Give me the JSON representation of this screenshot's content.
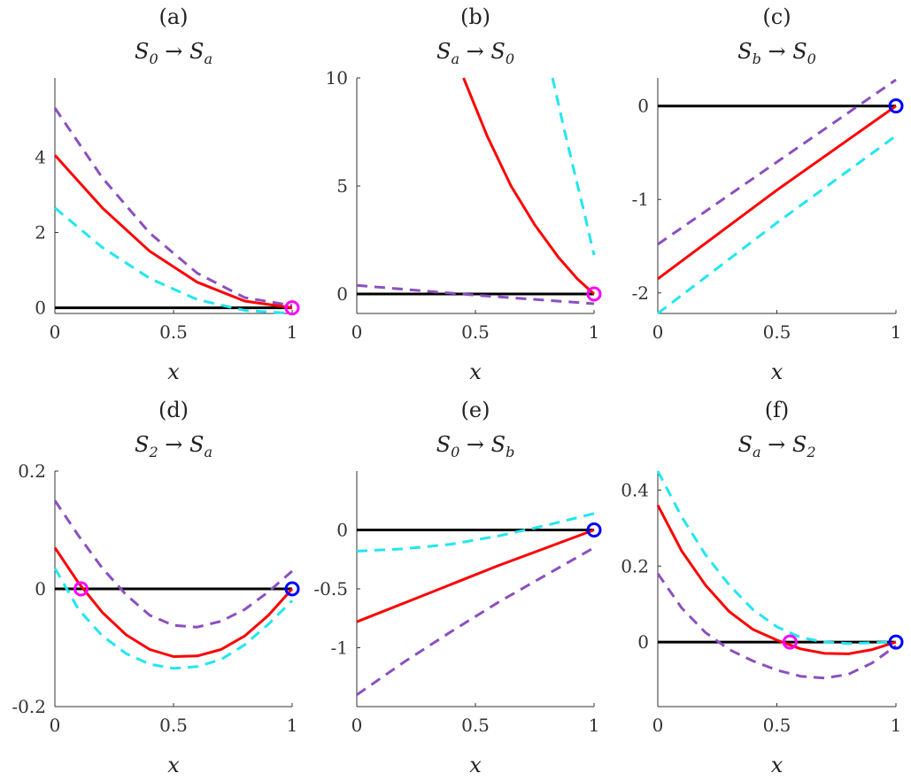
{
  "figure": {
    "x_label": "x",
    "colors": {
      "zero_line": "#000000",
      "solution": "#ff0000",
      "upper_dashed": "#8c4fc0",
      "lower_dashed": "#21e6f0",
      "marker_magenta": "#ff00ff",
      "marker_blue": "#0000ff"
    }
  },
  "chart_data": [
    {
      "id": "a",
      "type": "line",
      "panel_label": "(a)",
      "title": {
        "from": "S",
        "from_sub": "0",
        "to": "S",
        "to_sub": "a"
      },
      "xlabel": "x",
      "xlim": [
        0,
        1
      ],
      "ylim": [
        -0.15,
        6.1
      ],
      "xticks": [
        0,
        0.5,
        1
      ],
      "xtick_labels": [
        "0",
        "0.5",
        "1"
      ],
      "yticks": [
        0,
        2,
        4
      ],
      "ytick_labels": [
        "0",
        "2",
        "4"
      ],
      "series": [
        {
          "style": "zero",
          "x": [
            0,
            1
          ],
          "y": [
            0,
            0
          ]
        },
        {
          "style": "upper-dashed",
          "x": [
            0,
            0.2,
            0.4,
            0.6,
            0.8,
            1
          ],
          "y": [
            5.3,
            3.45,
            1.98,
            0.92,
            0.27,
            0.06
          ]
        },
        {
          "style": "solution",
          "x": [
            0,
            0.2,
            0.4,
            0.6,
            0.8,
            1
          ],
          "y": [
            4.05,
            2.65,
            1.5,
            0.68,
            0.18,
            0
          ]
        },
        {
          "style": "lower-dashed",
          "x": [
            0,
            0.2,
            0.4,
            0.6,
            0.8,
            1
          ],
          "y": [
            2.65,
            1.6,
            0.78,
            0.22,
            -0.07,
            -0.15
          ]
        }
      ],
      "markers": [
        {
          "x": 1,
          "y": 0,
          "color": "magenta"
        }
      ]
    },
    {
      "id": "b",
      "type": "line",
      "panel_label": "(b)",
      "title": {
        "from": "S",
        "from_sub": "a",
        "to": "S",
        "to_sub": "0"
      },
      "xlabel": "x",
      "xlim": [
        0,
        1
      ],
      "ylim": [
        -0.9,
        10
      ],
      "xticks": [
        0,
        0.5,
        1
      ],
      "xtick_labels": [
        "0",
        "0.5",
        "1"
      ],
      "yticks": [
        0,
        5,
        10
      ],
      "ytick_labels": [
        "0",
        "5",
        "10"
      ],
      "series": [
        {
          "style": "zero",
          "x": [
            0,
            1
          ],
          "y": [
            0,
            0
          ]
        },
        {
          "style": "upper-dashed",
          "x": [
            0,
            0.5,
            1
          ],
          "y": [
            0.4,
            -0.05,
            -0.45
          ]
        },
        {
          "style": "solution",
          "x": [
            0.45,
            0.55,
            0.65,
            0.75,
            0.85,
            0.93,
            1
          ],
          "y": [
            10,
            7.3,
            5.0,
            3.2,
            1.7,
            0.7,
            0
          ]
        },
        {
          "style": "lower-dashed",
          "x": [
            0.825,
            0.87,
            0.92,
            0.96,
            1
          ],
          "y": [
            10,
            7.8,
            5.5,
            3.7,
            1.8
          ]
        }
      ],
      "markers": [
        {
          "x": 1,
          "y": 0,
          "color": "magenta"
        }
      ]
    },
    {
      "id": "c",
      "type": "line",
      "panel_label": "(c)",
      "title": {
        "from": "S",
        "from_sub": "b",
        "to": "S",
        "to_sub": "0"
      },
      "xlabel": "x",
      "xlim": [
        0,
        1
      ],
      "ylim": [
        -2.22,
        0.3
      ],
      "xticks": [
        0,
        0.5,
        1
      ],
      "xtick_labels": [
        "0",
        "0.5",
        "1"
      ],
      "yticks": [
        -2,
        -1,
        0
      ],
      "ytick_labels": [
        "-2",
        "-1",
        "0"
      ],
      "series": [
        {
          "style": "zero",
          "x": [
            0,
            1
          ],
          "y": [
            0,
            0
          ]
        },
        {
          "style": "upper-dashed",
          "x": [
            0,
            0.5,
            1
          ],
          "y": [
            -1.48,
            -0.6,
            0.28
          ]
        },
        {
          "style": "solution",
          "x": [
            0,
            0.5,
            1
          ],
          "y": [
            -1.85,
            -0.9,
            0
          ]
        },
        {
          "style": "lower-dashed",
          "x": [
            0,
            0.5,
            1
          ],
          "y": [
            -2.22,
            -1.25,
            -0.32
          ]
        }
      ],
      "markers": [
        {
          "x": 1,
          "y": 0,
          "color": "blue"
        }
      ]
    },
    {
      "id": "d",
      "type": "line",
      "panel_label": "(d)",
      "title": {
        "from": "S",
        "from_sub": "2",
        "to": "S",
        "to_sub": "a"
      },
      "xlabel": "x",
      "xlim": [
        0,
        1
      ],
      "ylim": [
        -0.2,
        0.2
      ],
      "xticks": [
        0,
        0.5,
        1
      ],
      "xtick_labels": [
        "0",
        "0.5",
        "1"
      ],
      "yticks": [
        -0.2,
        0,
        0.2
      ],
      "ytick_labels": [
        "-0.2",
        "0",
        "0.2"
      ],
      "series": [
        {
          "style": "zero",
          "x": [
            0,
            1
          ],
          "y": [
            0,
            0
          ]
        },
        {
          "style": "upper-dashed",
          "x": [
            0,
            0.1,
            0.2,
            0.3,
            0.4,
            0.5,
            0.6,
            0.7,
            0.8,
            0.9,
            1
          ],
          "y": [
            0.15,
            0.09,
            0.035,
            -0.01,
            -0.045,
            -0.062,
            -0.065,
            -0.055,
            -0.035,
            -0.005,
            0.03
          ]
        },
        {
          "style": "solution",
          "x": [
            0,
            0.1,
            0.2,
            0.3,
            0.4,
            0.5,
            0.6,
            0.7,
            0.8,
            0.9,
            1
          ],
          "y": [
            0.07,
            0.01,
            -0.04,
            -0.078,
            -0.103,
            -0.115,
            -0.114,
            -0.103,
            -0.08,
            -0.045,
            0
          ]
        },
        {
          "style": "lower-dashed",
          "x": [
            0,
            0.1,
            0.2,
            0.3,
            0.4,
            0.5,
            0.6,
            0.7,
            0.8,
            0.9,
            1
          ],
          "y": [
            0.035,
            -0.035,
            -0.08,
            -0.11,
            -0.128,
            -0.135,
            -0.132,
            -0.12,
            -0.095,
            -0.06,
            -0.02
          ]
        }
      ],
      "markers": [
        {
          "x": 0.11,
          "y": 0,
          "color": "magenta"
        },
        {
          "x": 1,
          "y": 0,
          "color": "blue"
        }
      ]
    },
    {
      "id": "e",
      "type": "line",
      "panel_label": "(e)",
      "title": {
        "from": "S",
        "from_sub": "0",
        "to": "S",
        "to_sub": "b"
      },
      "xlabel": "x",
      "xlim": [
        0,
        1
      ],
      "ylim": [
        -1.5,
        0.5
      ],
      "xticks": [
        0,
        0.5,
        1
      ],
      "xtick_labels": [
        "0",
        "0.5",
        "1"
      ],
      "yticks": [
        -1,
        -0.5,
        0
      ],
      "ytick_labels": [
        "-1",
        "-0.5",
        "0"
      ],
      "series": [
        {
          "style": "zero",
          "x": [
            0,
            1
          ],
          "y": [
            0,
            0
          ]
        },
        {
          "style": "lower-dashed",
          "x": [
            0,
            0.2,
            0.4,
            0.6,
            0.8,
            1
          ],
          "y": [
            -0.18,
            -0.16,
            -0.12,
            -0.05,
            0.04,
            0.14
          ]
        },
        {
          "style": "solution",
          "x": [
            0,
            0.2,
            0.4,
            0.6,
            0.8,
            1
          ],
          "y": [
            -0.78,
            -0.62,
            -0.46,
            -0.3,
            -0.15,
            0
          ]
        },
        {
          "style": "upper-dashed",
          "x": [
            0,
            0.2,
            0.4,
            0.6,
            0.8,
            1
          ],
          "y": [
            -1.4,
            -1.12,
            -0.86,
            -0.61,
            -0.38,
            -0.15
          ]
        }
      ],
      "markers": [
        {
          "x": 1,
          "y": 0,
          "color": "blue"
        }
      ]
    },
    {
      "id": "f",
      "type": "line",
      "panel_label": "(f)",
      "title": {
        "from": "S",
        "from_sub": "a",
        "to": "S",
        "to_sub": "2"
      },
      "xlabel": "x",
      "xlim": [
        0,
        1
      ],
      "ylim": [
        -0.17,
        0.45
      ],
      "xticks": [
        0,
        0.5,
        1
      ],
      "xtick_labels": [
        "0",
        "0.5",
        "1"
      ],
      "yticks": [
        0,
        0.2,
        0.4
      ],
      "ytick_labels": [
        "0",
        "0.2",
        "0.4"
      ],
      "series": [
        {
          "style": "zero",
          "x": [
            0,
            1
          ],
          "y": [
            0,
            0
          ]
        },
        {
          "style": "lower-dashed",
          "x": [
            0,
            0.1,
            0.2,
            0.3,
            0.4,
            0.5,
            0.6,
            0.7,
            0.8,
            0.9,
            1
          ],
          "y": [
            0.45,
            0.33,
            0.23,
            0.15,
            0.085,
            0.04,
            0.012,
            0,
            -0.004,
            -0.002,
            0
          ]
        },
        {
          "style": "solution",
          "x": [
            0,
            0.1,
            0.2,
            0.3,
            0.4,
            0.5,
            0.6,
            0.7,
            0.8,
            0.9,
            1
          ],
          "y": [
            0.36,
            0.24,
            0.15,
            0.08,
            0.033,
            0.005,
            -0.018,
            -0.03,
            -0.031,
            -0.02,
            0
          ]
        },
        {
          "style": "upper-dashed",
          "x": [
            0,
            0.1,
            0.2,
            0.3,
            0.4,
            0.5,
            0.6,
            0.7,
            0.8,
            0.9,
            1
          ],
          "y": [
            0.18,
            0.09,
            0.025,
            -0.02,
            -0.05,
            -0.074,
            -0.09,
            -0.095,
            -0.085,
            -0.055,
            -0.01
          ]
        }
      ],
      "markers": [
        {
          "x": 0.555,
          "y": 0,
          "color": "magenta"
        },
        {
          "x": 1,
          "y": 0,
          "color": "blue"
        }
      ]
    }
  ]
}
